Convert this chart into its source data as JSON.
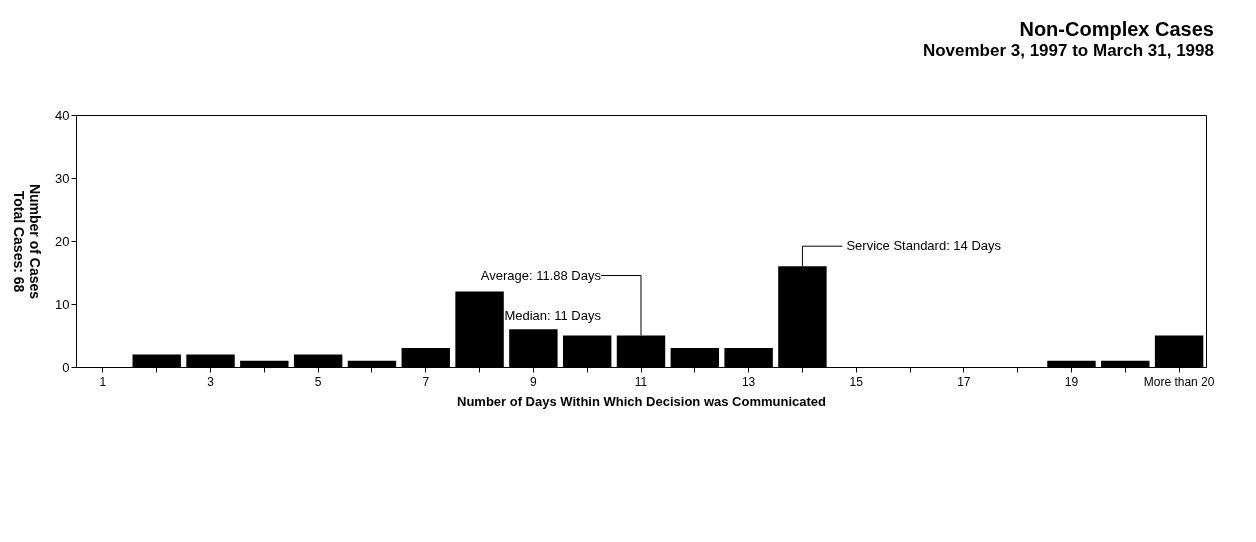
{
  "chart_data": {
    "type": "bar",
    "title": "Non-Complex Cases",
    "subtitle": "November 3, 1997 to March 31, 1998",
    "xlabel": "Number of Days Within Which Decision was Communicated",
    "ylabel": "Number of Cases",
    "categories": [
      "1",
      null,
      "3",
      null,
      "5",
      null,
      "7",
      null,
      "9",
      null,
      "11",
      null,
      "13",
      null,
      "15",
      null,
      "17",
      null,
      "19",
      null,
      "More than 20"
    ],
    "values": [
      0,
      2,
      2,
      1,
      2,
      1,
      3,
      12,
      6,
      5,
      5,
      3,
      3,
      16,
      0,
      0,
      0,
      0,
      1,
      1,
      5
    ],
    "color": "#000000",
    "ylim": [
      0,
      40
    ],
    "yticks": [
      0,
      10,
      20,
      30,
      40
    ],
    "grid": false,
    "annotations": [
      "Total Cases: 68",
      "Median: 11 Days",
      "Average: 11.88 Days",
      "Service Standard: 14 Days"
    ]
  }
}
